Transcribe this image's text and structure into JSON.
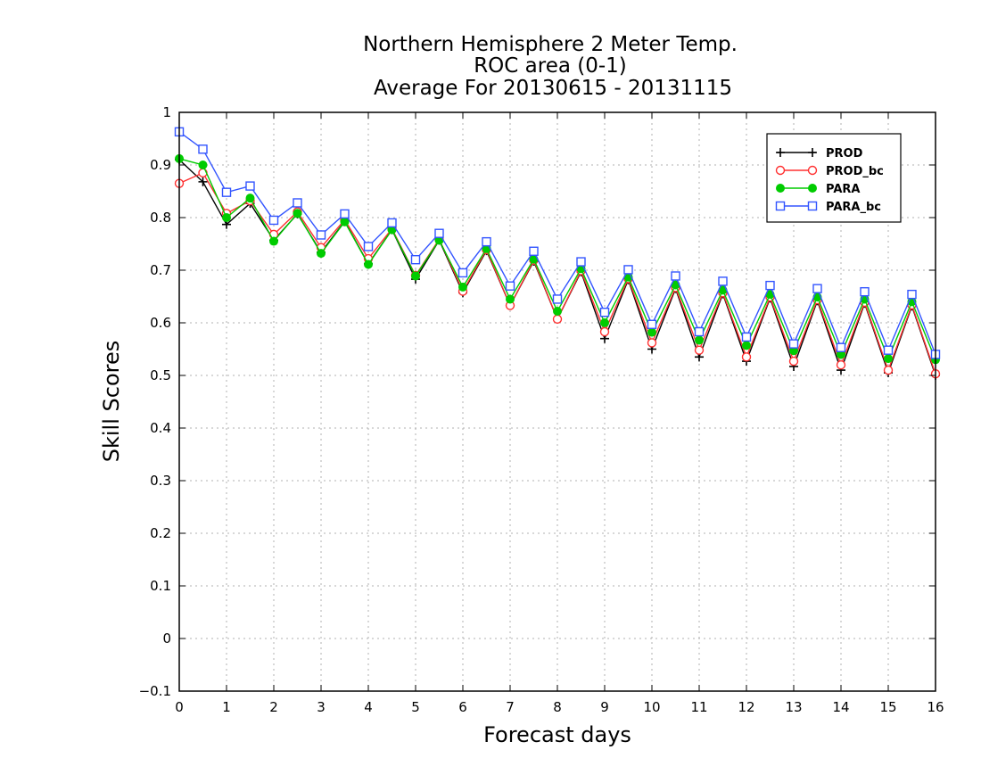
{
  "chart_data": {
    "type": "line",
    "title_lines": [
      "Northern Hemisphere 2 Meter Temp.",
      "ROC area (0-1)",
      "Average For 20130615 - 20131115"
    ],
    "xlabel": "Forecast days",
    "ylabel": "Skill Scores",
    "xlim": [
      0,
      16
    ],
    "ylim": [
      -0.1,
      1
    ],
    "x_ticks": [
      "0",
      "1",
      "2",
      "3",
      "4",
      "5",
      "6",
      "7",
      "8",
      "9",
      "10",
      "11",
      "12",
      "13",
      "14",
      "15",
      "16"
    ],
    "y_ticks": [
      "−0.1",
      "0",
      "0.1",
      "0.2",
      "0.3",
      "0.4",
      "0.5",
      "0.6",
      "0.7",
      "0.8",
      "0.9",
      "1"
    ],
    "grid": true,
    "legend_position": "top-right",
    "x": [
      0,
      0.5,
      1,
      1.5,
      2,
      2.5,
      3,
      3.5,
      4,
      4.5,
      5,
      5.5,
      6,
      6.5,
      7,
      7.5,
      8,
      8.5,
      9,
      9.5,
      10,
      10.5,
      11,
      11.5,
      12,
      12.5,
      13,
      13.5,
      14,
      14.5,
      15,
      15.5,
      16
    ],
    "series": [
      {
        "name": "PROD",
        "color": "#000000",
        "marker": "plus",
        "values": [
          0.91,
          0.868,
          0.787,
          0.827,
          0.757,
          0.807,
          0.734,
          0.793,
          0.712,
          0.777,
          0.683,
          0.757,
          0.657,
          0.737,
          0.633,
          0.717,
          0.607,
          0.697,
          0.57,
          0.682,
          0.55,
          0.665,
          0.535,
          0.655,
          0.527,
          0.647,
          0.517,
          0.642,
          0.51,
          0.637,
          0.505,
          0.632,
          0.5
        ]
      },
      {
        "name": "PROD_bc",
        "color": "#ff3030",
        "marker": "circle",
        "values": [
          0.865,
          0.885,
          0.808,
          0.832,
          0.768,
          0.811,
          0.743,
          0.796,
          0.722,
          0.779,
          0.69,
          0.759,
          0.66,
          0.739,
          0.633,
          0.719,
          0.607,
          0.699,
          0.583,
          0.684,
          0.562,
          0.667,
          0.548,
          0.657,
          0.535,
          0.649,
          0.527,
          0.644,
          0.52,
          0.639,
          0.51,
          0.634,
          0.503
        ]
      },
      {
        "name": "PARA",
        "color": "#00cc00",
        "marker": "filled-circle",
        "values": [
          0.912,
          0.9,
          0.8,
          0.837,
          0.755,
          0.808,
          0.732,
          0.792,
          0.711,
          0.777,
          0.689,
          0.757,
          0.668,
          0.741,
          0.645,
          0.721,
          0.622,
          0.703,
          0.6,
          0.687,
          0.582,
          0.672,
          0.567,
          0.662,
          0.557,
          0.654,
          0.547,
          0.649,
          0.54,
          0.645,
          0.532,
          0.64,
          0.53
        ]
      },
      {
        "name": "PARA_bc",
        "color": "#3355ff",
        "marker": "square",
        "values": [
          0.963,
          0.93,
          0.848,
          0.86,
          0.795,
          0.828,
          0.767,
          0.807,
          0.745,
          0.79,
          0.72,
          0.77,
          0.695,
          0.754,
          0.67,
          0.736,
          0.645,
          0.716,
          0.62,
          0.701,
          0.597,
          0.689,
          0.583,
          0.679,
          0.573,
          0.671,
          0.56,
          0.665,
          0.553,
          0.659,
          0.548,
          0.654,
          0.54
        ]
      }
    ]
  }
}
